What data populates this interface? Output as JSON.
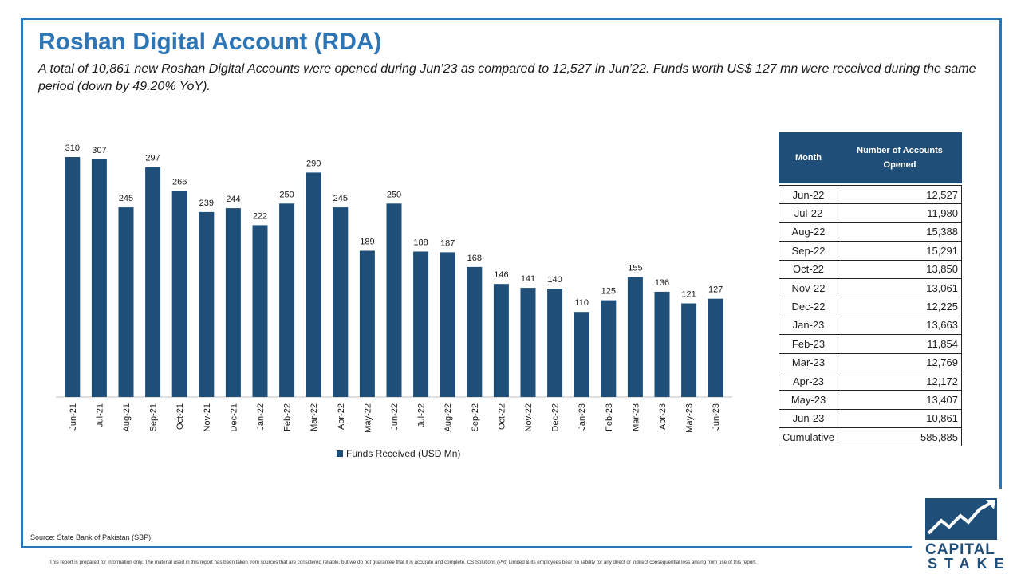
{
  "header": {
    "title": "Roshan Digital Account (RDA)",
    "subtitle": "A total of 10,861 new Roshan Digital Accounts were opened during Jun’23 as compared to 12,527 in Jun’22. Funds worth US$ 127 mn were received during the same period (down by 49.20% YoY)."
  },
  "chart_data": {
    "type": "bar",
    "categories": [
      "Jun-21",
      "Jul-21",
      "Aug-21",
      "Sep-21",
      "Oct-21",
      "Nov-21",
      "Dec-21",
      "Jan-22",
      "Feb-22",
      "Mar-22",
      "Apr-22",
      "May-22",
      "Jun-22",
      "Jul-22",
      "Aug-22",
      "Sep-22",
      "Oct-22",
      "Nov-22",
      "Dec-22",
      "Jan-23",
      "Feb-23",
      "Mar-23",
      "Apr-23",
      "May-23",
      "Jun-23"
    ],
    "series": [
      {
        "name": "Funds Received (USD Mn)",
        "values": [
          310,
          307,
          245,
          297,
          266,
          239,
          244,
          222,
          250,
          290,
          245,
          189,
          250,
          188,
          187,
          168,
          146,
          141,
          140,
          110,
          125,
          155,
          136,
          121,
          127
        ]
      }
    ],
    "ylim": [
      0,
      320
    ],
    "grid": false,
    "legend": "bottom",
    "bar_color": "#1f4e79"
  },
  "table": {
    "headers": [
      "Month",
      "Number of Accounts Opened"
    ],
    "rows": [
      [
        "Jun-22",
        "12,527"
      ],
      [
        "Jul-22",
        "11,980"
      ],
      [
        "Aug-22",
        "15,388"
      ],
      [
        "Sep-22",
        "15,291"
      ],
      [
        "Oct-22",
        "13,850"
      ],
      [
        "Nov-22",
        "13,061"
      ],
      [
        "Dec-22",
        "12,225"
      ],
      [
        "Jan-23",
        "13,663"
      ],
      [
        "Feb-23",
        "11,854"
      ],
      [
        "Mar-23",
        "12,769"
      ],
      [
        "Apr-23",
        "12,172"
      ],
      [
        "May-23",
        "13,407"
      ],
      [
        "Jun-23",
        "10,861"
      ]
    ],
    "total": [
      "Cumulative",
      "585,885"
    ]
  },
  "footer": {
    "source": "Source: State Bank of Pakistan (SBP)",
    "disclaimer": "This report is prepared for information only. The material used in this report has been taken from sources that are considered reliable, but we do not guarantee that it is accurate and complete. CS Solutions (Pvt) Limited & its employees bear no liability for any direct or indirect consequential loss arising from use of this report."
  },
  "logo": {
    "word1": "CAPITAL",
    "word2": "STAKE",
    "icon": "rising-line-chart-icon"
  },
  "colors": {
    "accent": "#2e75b6",
    "bar": "#1f4e79"
  }
}
